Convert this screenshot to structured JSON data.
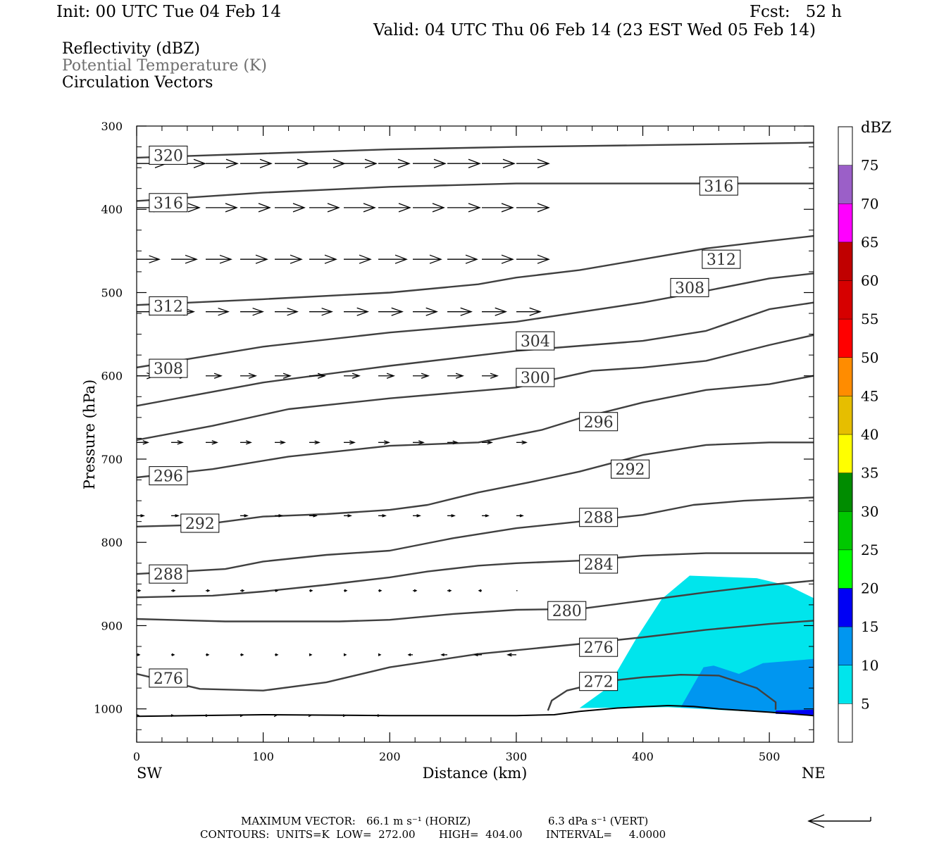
{
  "header": {
    "init": "Init: 00 UTC Tue 04 Feb 14",
    "fcst": "Fcst:   52 h",
    "valid": "Valid: 04 UTC Thu 06 Feb 14 (23 EST Wed 05 Feb 14)"
  },
  "fields": {
    "reflectivity": "Reflectivity (dBZ)",
    "theta": "Potential Temperature (K)",
    "vectors": "Circulation Vectors"
  },
  "chart_data": {
    "type": "cross-section",
    "xlabel": "Distance (km)",
    "ylabel": "Pressure (hPa)",
    "xlim": [
      0,
      535
    ],
    "ylim": [
      300,
      1040
    ],
    "y_inverted": true,
    "x_ticks": [
      0,
      100,
      200,
      300,
      400,
      500
    ],
    "y_ticks": [
      300,
      400,
      500,
      600,
      700,
      800,
      900,
      1000
    ],
    "x_end_labels": {
      "left": "SW",
      "right": "NE"
    },
    "colorbar": {
      "title": "dBZ",
      "levels": [
        5,
        10,
        15,
        20,
        25,
        30,
        35,
        40,
        45,
        50,
        55,
        60,
        65,
        70,
        75
      ],
      "colors": [
        "#ffffff",
        "#00e5ec",
        "#0096f0",
        "#0000f5",
        "#00ff00",
        "#00c800",
        "#008c00",
        "#ffff00",
        "#e6be00",
        "#ff8c00",
        "#ff0000",
        "#d60000",
        "#c00000",
        "#ff00ff",
        "#9b5fc8",
        "#ffffff"
      ]
    },
    "reflectivity_regions": [
      {
        "dbz": 5,
        "points": [
          [
            350,
            999
          ],
          [
            372,
            975
          ],
          [
            395,
            915
          ],
          [
            415,
            868
          ],
          [
            437,
            840
          ],
          [
            490,
            843
          ],
          [
            515,
            852
          ],
          [
            535,
            867
          ],
          [
            535,
            1007
          ],
          [
            495,
            1004
          ],
          [
            420,
            998
          ],
          [
            350,
            999
          ]
        ]
      },
      {
        "dbz": 10,
        "points": [
          [
            430,
            998
          ],
          [
            448,
            950
          ],
          [
            456,
            948
          ],
          [
            476,
            958
          ],
          [
            495,
            945
          ],
          [
            535,
            940
          ],
          [
            535,
            1007
          ],
          [
            510,
            1005
          ],
          [
            430,
            998
          ]
        ]
      },
      {
        "dbz": 15,
        "points": [
          [
            505,
            1002
          ],
          [
            535,
            1001
          ],
          [
            535,
            1007
          ],
          [
            505,
            1006
          ]
        ]
      }
    ],
    "terrain_hpa": [
      [
        0,
        1009
      ],
      [
        100,
        1007
      ],
      [
        200,
        1008
      ],
      [
        300,
        1008
      ],
      [
        330,
        1007
      ],
      [
        350,
        1003
      ],
      [
        380,
        999
      ],
      [
        420,
        996
      ],
      [
        440,
        997
      ],
      [
        460,
        1000
      ],
      [
        500,
        1004
      ],
      [
        535,
        1008
      ]
    ],
    "theta_contours": [
      {
        "level": 320,
        "points": [
          [
            0,
            338
          ],
          [
            100,
            333
          ],
          [
            200,
            328
          ],
          [
            300,
            325
          ],
          [
            400,
            323
          ],
          [
            535,
            320
          ]
        ]
      },
      {
        "level": 316,
        "points": [
          [
            0,
            390
          ],
          [
            100,
            380
          ],
          [
            200,
            373
          ],
          [
            300,
            369
          ],
          [
            400,
            369
          ],
          [
            535,
            369
          ]
        ]
      },
      {
        "level": 312,
        "points": [
          [
            0,
            515
          ],
          [
            100,
            508
          ],
          [
            200,
            500
          ],
          [
            270,
            490
          ],
          [
            300,
            482
          ],
          [
            350,
            473
          ],
          [
            400,
            460
          ],
          [
            450,
            447
          ],
          [
            500,
            438
          ],
          [
            535,
            432
          ]
        ]
      },
      {
        "level": 308,
        "points": [
          [
            0,
            590
          ],
          [
            100,
            565
          ],
          [
            200,
            548
          ],
          [
            300,
            535
          ],
          [
            400,
            512
          ],
          [
            450,
            498
          ],
          [
            500,
            483
          ],
          [
            535,
            477
          ]
        ]
      },
      {
        "level": 304,
        "points": [
          [
            0,
            636
          ],
          [
            100,
            608
          ],
          [
            200,
            588
          ],
          [
            300,
            570
          ],
          [
            400,
            558
          ],
          [
            450,
            546
          ],
          [
            500,
            520
          ],
          [
            535,
            512
          ]
        ]
      },
      {
        "level": 300,
        "points": [
          [
            0,
            677
          ],
          [
            60,
            660
          ],
          [
            120,
            640
          ],
          [
            200,
            627
          ],
          [
            300,
            614
          ],
          [
            360,
            594
          ],
          [
            400,
            590
          ],
          [
            450,
            582
          ],
          [
            500,
            563
          ],
          [
            535,
            551
          ]
        ]
      },
      {
        "level": 296,
        "points": [
          [
            0,
            722
          ],
          [
            60,
            712
          ],
          [
            120,
            697
          ],
          [
            200,
            684
          ],
          [
            270,
            680
          ],
          [
            320,
            665
          ],
          [
            350,
            651
          ],
          [
            400,
            632
          ],
          [
            450,
            617
          ],
          [
            500,
            610
          ],
          [
            535,
            600
          ]
        ]
      },
      {
        "level": 292,
        "points": [
          [
            0,
            781
          ],
          [
            50,
            779
          ],
          [
            100,
            769
          ],
          [
            150,
            766
          ],
          [
            200,
            761
          ],
          [
            230,
            755
          ],
          [
            270,
            740
          ],
          [
            310,
            728
          ],
          [
            350,
            715
          ],
          [
            400,
            695
          ],
          [
            450,
            683
          ],
          [
            500,
            680
          ],
          [
            535,
            680
          ]
        ]
      },
      {
        "level": 288,
        "points": [
          [
            0,
            838
          ],
          [
            70,
            832
          ],
          [
            100,
            823
          ],
          [
            150,
            815
          ],
          [
            200,
            810
          ],
          [
            250,
            795
          ],
          [
            300,
            783
          ],
          [
            350,
            775
          ],
          [
            400,
            767
          ],
          [
            440,
            755
          ],
          [
            480,
            750
          ],
          [
            535,
            746
          ]
        ]
      },
      {
        "level": 284,
        "points": [
          [
            0,
            866
          ],
          [
            60,
            864
          ],
          [
            100,
            859
          ],
          [
            150,
            851
          ],
          [
            200,
            842
          ],
          [
            230,
            835
          ],
          [
            270,
            828
          ],
          [
            300,
            825
          ],
          [
            350,
            822
          ],
          [
            400,
            816
          ],
          [
            450,
            813
          ],
          [
            535,
            813
          ]
        ]
      },
      {
        "level": 280,
        "points": [
          [
            0,
            892
          ],
          [
            70,
            895
          ],
          [
            120,
            895
          ],
          [
            160,
            895
          ],
          [
            200,
            893
          ],
          [
            250,
            886
          ],
          [
            300,
            881
          ],
          [
            350,
            880
          ],
          [
            400,
            870
          ],
          [
            450,
            860
          ],
          [
            500,
            851
          ],
          [
            535,
            846
          ]
        ]
      },
      {
        "level": 276,
        "points": [
          [
            0,
            958
          ],
          [
            50,
            976
          ],
          [
            100,
            978
          ],
          [
            150,
            968
          ],
          [
            200,
            950
          ],
          [
            270,
            934
          ],
          [
            350,
            922
          ],
          [
            400,
            914
          ],
          [
            450,
            905
          ],
          [
            500,
            898
          ],
          [
            535,
            894
          ]
        ]
      },
      {
        "level": 272,
        "points": [
          [
            325,
            1002
          ],
          [
            328,
            990
          ],
          [
            340,
            978
          ],
          [
            370,
            967
          ],
          [
            400,
            962
          ],
          [
            430,
            959
          ],
          [
            460,
            960
          ],
          [
            490,
            975
          ],
          [
            505,
            992
          ],
          [
            505,
            1001
          ]
        ]
      }
    ],
    "theta_labels": [
      {
        "text": "320",
        "x": 25,
        "p": 335
      },
      {
        "text": "316",
        "x": 25,
        "p": 392
      },
      {
        "text": "316",
        "x": 460,
        "p": 372
      },
      {
        "text": "312",
        "x": 25,
        "p": 516
      },
      {
        "text": "312",
        "x": 462,
        "p": 460
      },
      {
        "text": "308",
        "x": 25,
        "p": 591
      },
      {
        "text": "308",
        "x": 437,
        "p": 494
      },
      {
        "text": "304",
        "x": 315,
        "p": 558
      },
      {
        "text": "300",
        "x": 315,
        "p": 602
      },
      {
        "text": "296",
        "x": 365,
        "p": 655
      },
      {
        "text": "296",
        "x": 25,
        "p": 720
      },
      {
        "text": "292",
        "x": 390,
        "p": 712
      },
      {
        "text": "292",
        "x": 50,
        "p": 777
      },
      {
        "text": "288",
        "x": 365,
        "p": 770
      },
      {
        "text": "288",
        "x": 25,
        "p": 838
      },
      {
        "text": "284",
        "x": 365,
        "p": 826
      },
      {
        "text": "280",
        "x": 340,
        "p": 882
      },
      {
        "text": "276",
        "x": 365,
        "p": 926
      },
      {
        "text": "276",
        "x": 25,
        "p": 963
      },
      {
        "text": "272",
        "x": 365,
        "p": 967
      }
    ],
    "vector_rows": [
      {
        "p": 345,
        "dx": [
          42,
          48,
          45,
          44,
          48,
          50,
          46,
          44,
          46,
          46,
          46,
          46
        ]
      },
      {
        "p": 398,
        "dx": [
          40,
          40,
          44,
          42,
          42,
          42,
          44,
          45,
          44,
          46,
          44,
          46
        ]
      },
      {
        "p": 460,
        "dx": [
          32,
          36,
          36,
          38,
          38,
          38,
          38,
          40,
          40,
          42,
          44,
          46
        ]
      },
      {
        "p": 523,
        "dx": [
          32,
          32,
          32,
          32,
          32,
          32,
          34,
          34,
          34,
          34,
          34,
          34
        ]
      },
      {
        "p": 600,
        "dx": [
          26,
          22,
          22,
          22,
          22,
          22,
          22,
          22,
          22,
          22,
          22,
          22
        ]
      },
      {
        "p": 680,
        "dx": [
          16,
          16,
          16,
          15,
          14,
          14,
          15,
          15,
          15,
          14,
          14,
          14
        ]
      },
      {
        "p": 768,
        "dx": [
          10,
          10,
          10,
          10,
          10,
          10,
          10,
          10,
          10,
          10,
          9,
          9
        ]
      },
      {
        "p": 858,
        "dx": [
          5,
          5,
          5,
          5,
          4,
          4,
          4,
          4,
          5,
          5,
          -4,
          0
        ]
      },
      {
        "p": 935,
        "dx": [
          4,
          4,
          4,
          4,
          4,
          3,
          3,
          3,
          -6,
          -8,
          -10,
          -12
        ]
      },
      {
        "p": 1008,
        "dx": [
          3,
          3,
          3,
          3,
          2,
          2,
          2,
          2,
          0,
          0,
          0,
          0
        ]
      }
    ]
  },
  "footer": {
    "maxvec_label": "MAXIMUM VECTOR:",
    "horiz": "66.1 m s⁻¹ (HORIZ)",
    "vert": "6.3 dPa s⁻¹ (VERT)",
    "contours": "CONTOURS:  UNITS=K  LOW=  272.00       HIGH=  404.00       INTERVAL=     4.0000"
  }
}
